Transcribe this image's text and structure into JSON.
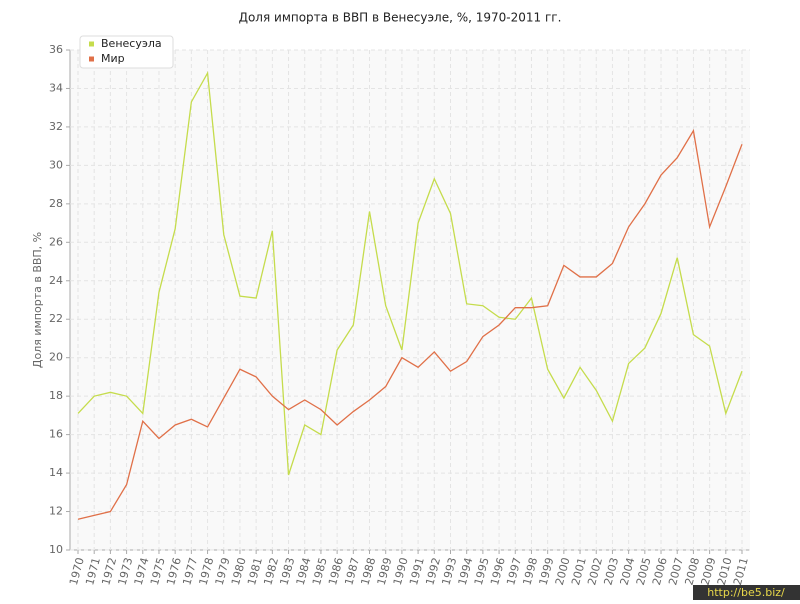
{
  "chart_data": {
    "type": "line",
    "title": "Доля импорта в ВВП в Венесуэле, %, 1970-2011 гг.",
    "y_label": "Доля импорта в ВВП, %",
    "categories": [
      "1970",
      "1971",
      "1972",
      "1973",
      "1974",
      "1975",
      "1976",
      "1977",
      "1978",
      "1979",
      "1980",
      "1981",
      "1982",
      "1983",
      "1984",
      "1985",
      "1986",
      "1987",
      "1988",
      "1989",
      "1990",
      "1991",
      "1992",
      "1993",
      "1994",
      "1995",
      "1996",
      "1997",
      "1998",
      "1999",
      "2000",
      "2001",
      "2002",
      "2003",
      "2004",
      "2005",
      "2006",
      "2007",
      "2008",
      "2009",
      "2010",
      "2011"
    ],
    "series": [
      {
        "name": "Венесуэла",
        "color": "#c5dc4c",
        "values": [
          17.1,
          18.0,
          18.2,
          18.0,
          17.1,
          23.4,
          26.7,
          33.3,
          34.8,
          26.4,
          23.2,
          23.1,
          26.6,
          13.9,
          16.5,
          16.0,
          20.4,
          21.7,
          27.6,
          22.7,
          20.4,
          27.0,
          29.3,
          27.5,
          22.8,
          22.7,
          22.1,
          22.0,
          23.1,
          19.4,
          17.9,
          19.5,
          18.3,
          16.7,
          19.7,
          20.5,
          22.3,
          25.2,
          21.2,
          20.6,
          17.1,
          19.3
        ]
      },
      {
        "name": "Мир",
        "color": "#e07048",
        "values": [
          11.6,
          11.8,
          12.0,
          13.4,
          16.7,
          15.8,
          16.5,
          16.8,
          16.4,
          17.9,
          19.4,
          19.0,
          18.0,
          17.3,
          17.8,
          17.3,
          16.5,
          17.2,
          17.8,
          18.5,
          20.0,
          19.5,
          20.3,
          19.3,
          19.8,
          21.1,
          21.7,
          22.6,
          22.6,
          22.7,
          24.8,
          24.2,
          24.2,
          24.9,
          26.8,
          28.0,
          29.5,
          30.4,
          31.8,
          26.8,
          28.9,
          31.1
        ]
      }
    ],
    "ylim": [
      10,
      36
    ],
    "yticks": [
      10,
      12,
      14,
      16,
      18,
      20,
      22,
      24,
      26,
      28,
      30,
      32,
      34,
      36
    ],
    "grid": true,
    "legend": "top-left",
    "watermark": "http://be5.biz/"
  }
}
